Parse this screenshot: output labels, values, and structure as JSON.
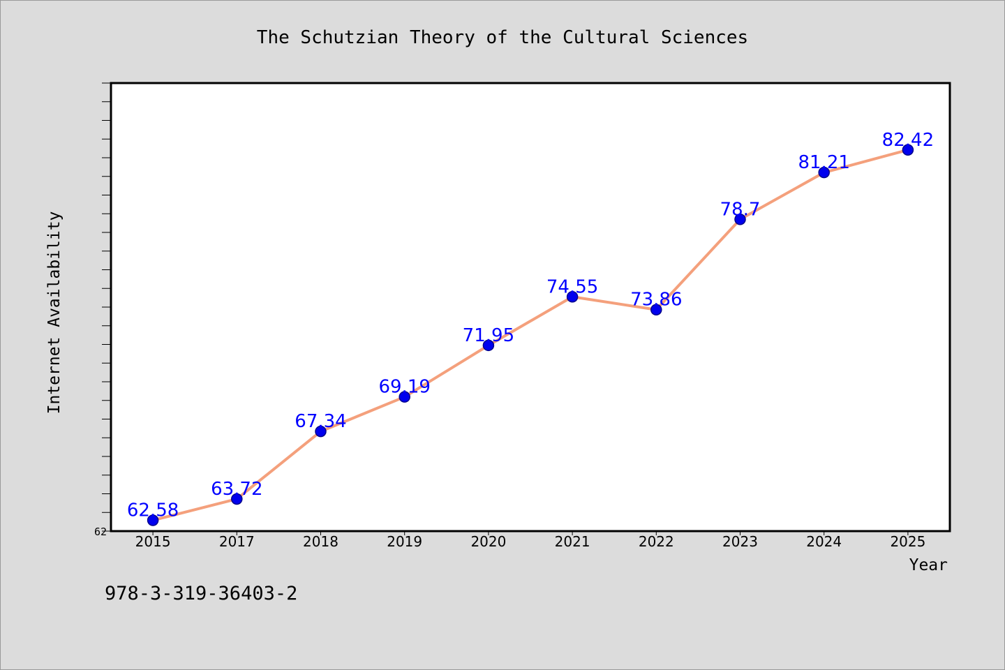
{
  "chart_data": {
    "type": "line",
    "title": "The Schutzian Theory of the Cultural Sciences",
    "xlabel": "Year",
    "ylabel": "Internet Availability",
    "categories": [
      "2015",
      "2017",
      "2018",
      "2019",
      "2020",
      "2021",
      "2022",
      "2023",
      "2024",
      "2025"
    ],
    "series": [
      {
        "values": [
          62.58,
          63.72,
          67.34,
          69.19,
          71.95,
          74.55,
          73.86,
          78.7,
          81.21,
          82.42
        ],
        "data_labels": [
          "62.58",
          "63.72",
          "67.34",
          "69.19",
          "71.95",
          "74.55",
          "73.86",
          "78.7",
          "81.21",
          "82.42"
        ]
      }
    ],
    "ylim": [
      62,
      86
    ],
    "y_tick_labels": [
      "62"
    ],
    "grid": false,
    "legend": "none",
    "colors": {
      "line": "#f4a07c",
      "marker": "#0000ee",
      "marker_edge": "#00008b",
      "label": "#0000ff",
      "plot_bg": "#ffffff",
      "figure_bg": "#dcdcdc"
    }
  },
  "footer": {
    "code": "978-3-319-36403-2"
  }
}
